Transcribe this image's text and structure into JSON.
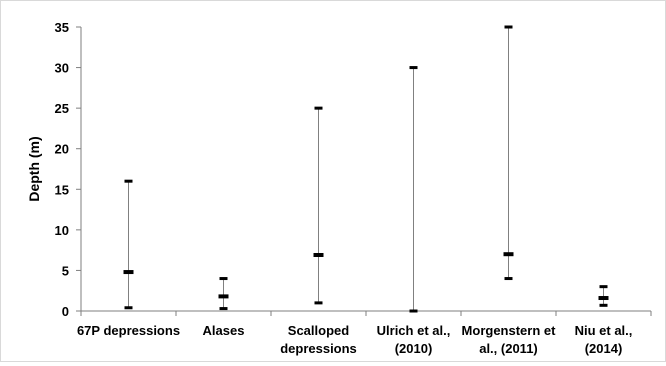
{
  "chart_data": {
    "type": "range",
    "title": "",
    "xlabel": "",
    "ylabel": "Depth (m)",
    "ylim": [
      0,
      35
    ],
    "yticks": [
      0,
      5,
      10,
      15,
      20,
      25,
      30,
      35
    ],
    "grid": false,
    "legend": "none",
    "categories": [
      "67P depressions",
      "Alases",
      "Scalloped depressions",
      "Ulrich et al., (2010)",
      "Morgenstern et al., (2011)",
      "Niu et al., (2014)"
    ],
    "category_lines": [
      [
        "67P depressions"
      ],
      [
        "Alases"
      ],
      [
        "Scalloped",
        "depressions"
      ],
      [
        "Ulrich et al.,",
        "(2010)"
      ],
      [
        "Morgenstern et",
        "al., (2011)"
      ],
      [
        "Niu et al.,",
        "(2014)"
      ]
    ],
    "series": [
      {
        "name": "",
        "values": [
          0.4,
          0.3,
          1.0,
          0.0,
          4.0,
          0.7
        ],
        "role": "min"
      },
      {
        "name": "",
        "values": [
          4.8,
          1.8,
          6.9,
          null,
          7.0,
          1.6
        ],
        "role": "mean"
      },
      {
        "name": "",
        "values": [
          16.0,
          4.0,
          25.0,
          30.0,
          35.0,
          3.0
        ],
        "role": "max"
      }
    ]
  },
  "colors": {
    "range_line": "#808080",
    "marker": "#000000",
    "axis": "#7f7f7f"
  }
}
